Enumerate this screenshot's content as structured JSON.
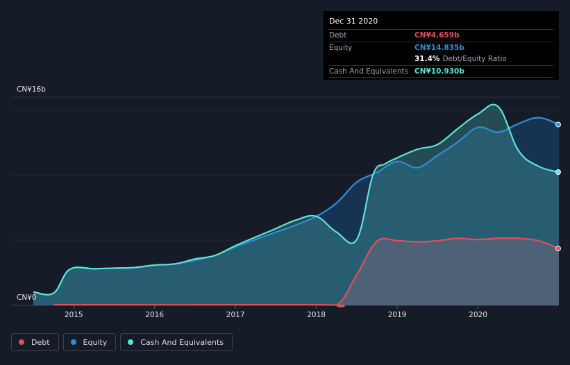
{
  "chart_data": {
    "type": "area",
    "x_start": 2014.5,
    "x_end": 2021.0,
    "ylim": [
      0,
      16
    ],
    "y_top_label": "CN¥16b",
    "y_bottom_label": "CN¥0",
    "xticks": [
      {
        "x": 2015,
        "label": "2015"
      },
      {
        "x": 2016,
        "label": "2016"
      },
      {
        "x": 2017,
        "label": "2017"
      },
      {
        "x": 2018,
        "label": "2018"
      },
      {
        "x": 2019,
        "label": "2019"
      },
      {
        "x": 2020,
        "label": "2020"
      }
    ],
    "gridlines": [
      16,
      10.7,
      5.35
    ],
    "series": [
      {
        "name": "Debt",
        "color": "#e0505a",
        "x": [
          2014.75,
          2018.0,
          2018.27,
          2018.5,
          2018.75,
          2019.0,
          2019.25,
          2019.5,
          2019.75,
          2020.0,
          2020.25,
          2020.5,
          2020.75,
          2021.0
        ],
        "y": [
          0.05,
          0.05,
          0.1,
          2.5,
          5.25,
          5.3,
          5.2,
          5.3,
          5.5,
          5.4,
          5.5,
          5.5,
          5.3,
          4.659
        ]
      },
      {
        "name": "Equity",
        "color": "#2e8fd8",
        "x": [
          2014.5,
          2014.75,
          2014.95,
          2015.25,
          2015.5,
          2015.75,
          2016.0,
          2016.25,
          2016.5,
          2016.75,
          2017.0,
          2017.25,
          2017.5,
          2017.75,
          2018.0,
          2018.25,
          2018.5,
          2018.75,
          2019.0,
          2019.25,
          2019.5,
          2019.75,
          2020.0,
          2020.25,
          2020.5,
          2020.75,
          2021.0
        ],
        "y": [
          1.1,
          1.0,
          2.95,
          3.0,
          3.05,
          3.1,
          3.3,
          3.4,
          3.7,
          4.1,
          4.8,
          5.4,
          6.0,
          6.6,
          7.3,
          8.4,
          10.1,
          10.9,
          11.8,
          11.3,
          12.3,
          13.4,
          14.6,
          14.2,
          14.9,
          15.4,
          14.835
        ]
      },
      {
        "name": "Cash And Equivalents",
        "color": "#5ce4d6",
        "x": [
          2014.5,
          2014.75,
          2014.95,
          2015.25,
          2015.5,
          2015.75,
          2016.0,
          2016.25,
          2016.5,
          2016.75,
          2017.0,
          2017.25,
          2017.5,
          2017.75,
          2018.0,
          2018.25,
          2018.5,
          2018.7,
          2018.85,
          2019.0,
          2019.25,
          2019.5,
          2019.75,
          2020.0,
          2020.25,
          2020.5,
          2020.75,
          2021.0
        ],
        "y": [
          1.1,
          1.0,
          2.95,
          3.0,
          3.05,
          3.1,
          3.3,
          3.4,
          3.8,
          4.1,
          4.9,
          5.6,
          6.3,
          7.0,
          7.3,
          6.0,
          5.4,
          10.7,
          11.6,
          12.1,
          12.8,
          13.2,
          14.5,
          15.7,
          16.3,
          12.7,
          11.4,
          10.93
        ]
      }
    ]
  },
  "tooltip": {
    "date": "Dec 31 2020",
    "rows": [
      {
        "label": "Debt",
        "value": "CN¥4.659b",
        "color": "#e0505a"
      },
      {
        "label": "Equity",
        "value": "CN¥14.835b",
        "color": "#2e8fd8"
      }
    ],
    "ratio_value": "31.4%",
    "ratio_label": "Debt/Equity Ratio",
    "cash": {
      "label": "Cash And Equivalents",
      "value": "CN¥10.930b",
      "color": "#5ce4d6"
    }
  },
  "legend": [
    {
      "label": "Debt",
      "color": "#e0505a"
    },
    {
      "label": "Equity",
      "color": "#2e8fd8"
    },
    {
      "label": "Cash And Equivalents",
      "color": "#5ce4d6"
    }
  ]
}
